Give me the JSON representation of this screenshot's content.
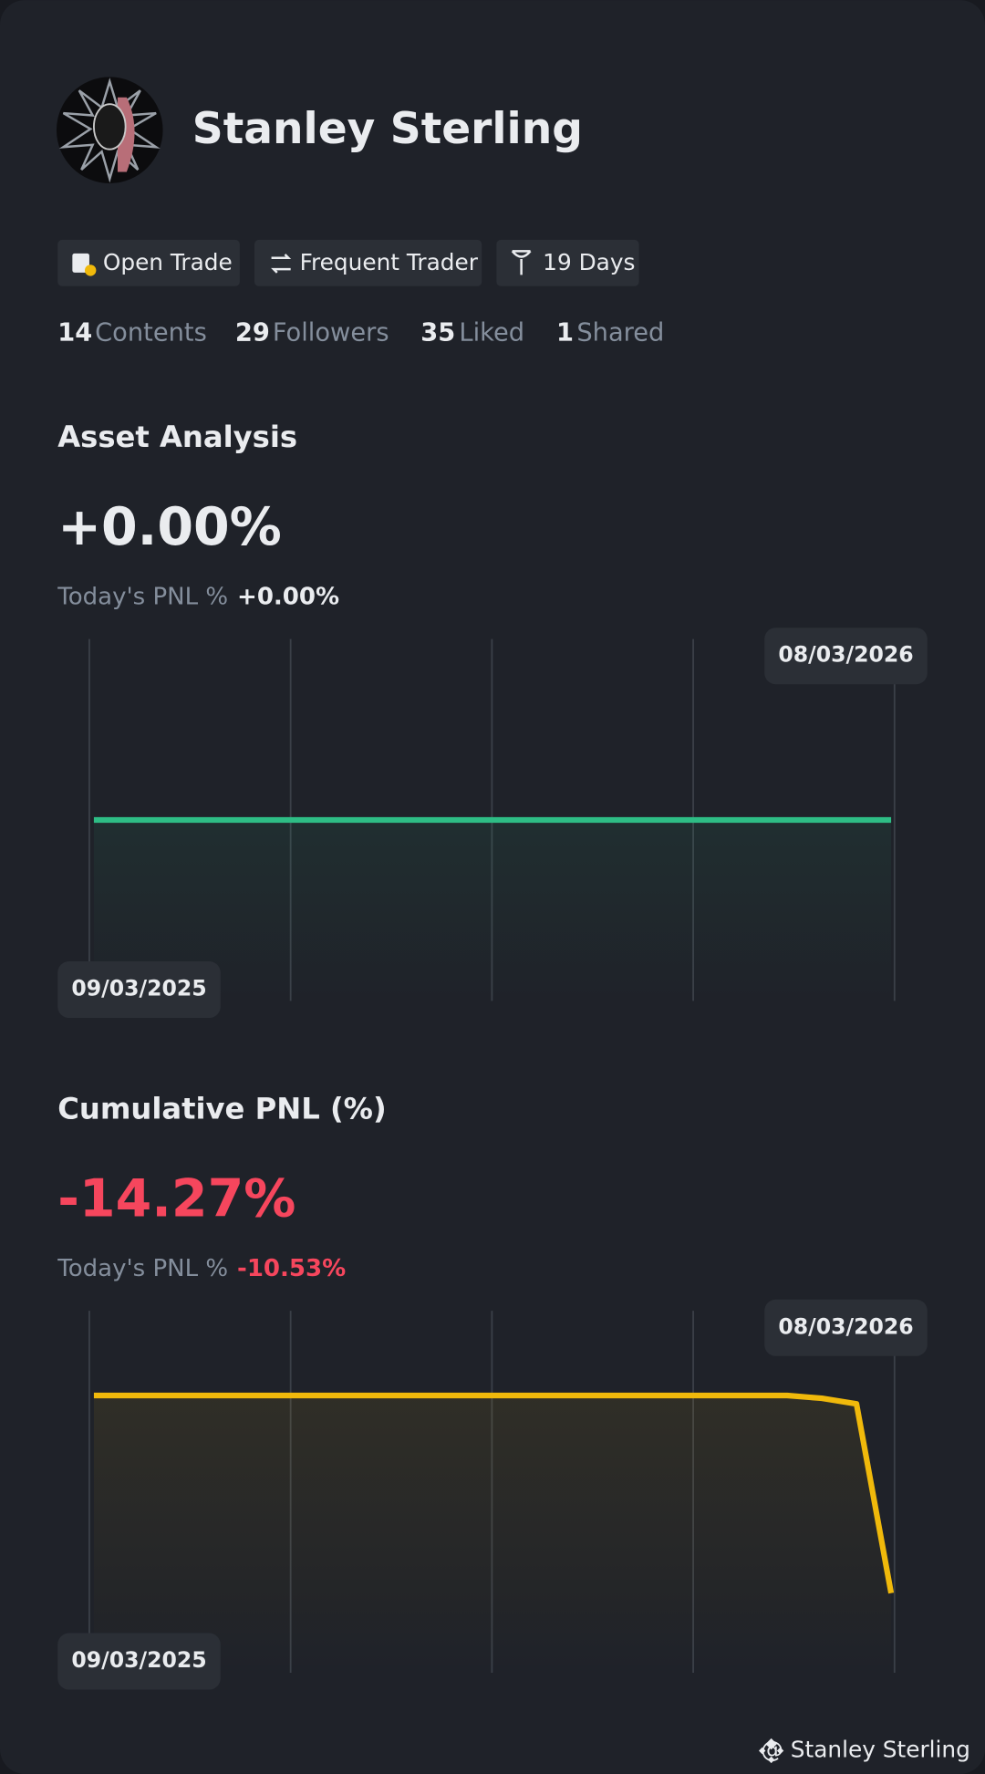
{
  "profile": {
    "name": "Stanley Sterling",
    "tags": [
      "Open Trade",
      "Frequent Trader",
      "19 Days"
    ],
    "stats": [
      {
        "count": 14,
        "label": "Contents"
      },
      {
        "count": 29,
        "label": "Followers"
      },
      {
        "count": 35,
        "label": "Liked"
      },
      {
        "count": 1,
        "label": "Shared"
      }
    ]
  },
  "chart_data": [
    {
      "type": "line",
      "title": "Asset Analysis",
      "headline": "+0.00%",
      "today_label": "Today's PNL %",
      "today_value": "+0.00%",
      "color": "#2ebd85",
      "categories": [
        "09/03/2025",
        null,
        null,
        null,
        null,
        null,
        null,
        null,
        null,
        null,
        null,
        null,
        null,
        null,
        null,
        null,
        null,
        null,
        null,
        null,
        null,
        null,
        null,
        "08/03/2026"
      ],
      "values": [
        0,
        0,
        0,
        0,
        0,
        0,
        0,
        0,
        0,
        0,
        0,
        0,
        0,
        0,
        0,
        0,
        0,
        0,
        0,
        0,
        0,
        0,
        0,
        0
      ]
    },
    {
      "type": "line",
      "title": "Cumulative PNL (%)",
      "headline": "-14.27%",
      "today_label": "Today's PNL %",
      "today_value": "-10.53%",
      "color": "#f0b90b",
      "categories": [
        "09/03/2025",
        null,
        null,
        null,
        null,
        null,
        null,
        null,
        null,
        null,
        null,
        null,
        null,
        null,
        null,
        null,
        null,
        null,
        null,
        null,
        null,
        null,
        null,
        "08/03/2026"
      ],
      "values": [
        0,
        0,
        0,
        0,
        0,
        0,
        0,
        0,
        0,
        0,
        0,
        0,
        0,
        0,
        0,
        0,
        0,
        0,
        0,
        0,
        0,
        -0.2,
        -0.6,
        -14.27
      ]
    }
  ],
  "footer": "@ Stanley Sterling"
}
